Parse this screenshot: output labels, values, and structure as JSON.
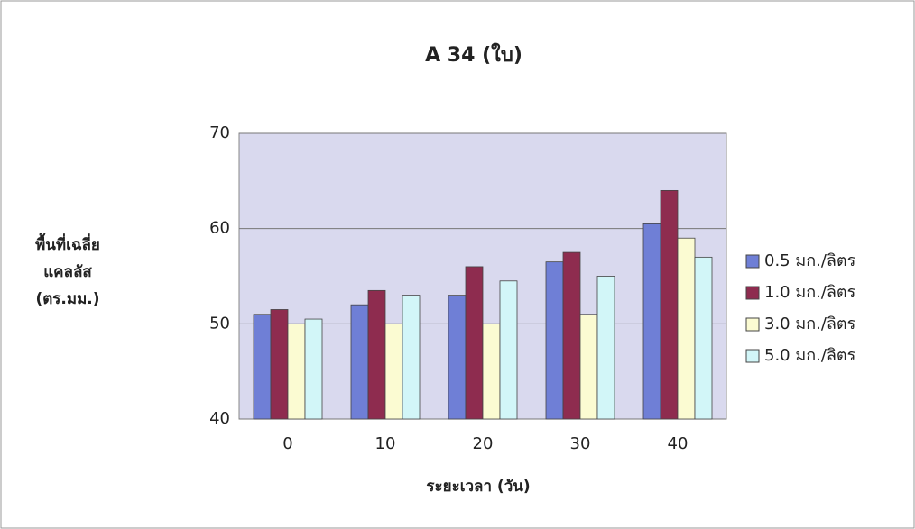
{
  "chart_data": {
    "type": "bar",
    "title": "A 34 (ใบ)",
    "x_label": "ระยะเวลา (วัน)",
    "y_label": [
      "พื้นที่เฉลี่ย",
      "แคลลัส",
      "(ตร.มม.)"
    ],
    "categories": [
      "0",
      "10",
      "20",
      "30",
      "40"
    ],
    "series": [
      {
        "name": "0.5 มก./ลิตร",
        "color": "#6f7fd6",
        "values": [
          51,
          52,
          53,
          56.5,
          60.5
        ]
      },
      {
        "name": "1.0 มก./ลิตร",
        "color": "#8e2c4f",
        "values": [
          51.5,
          53.5,
          56,
          57.5,
          64
        ]
      },
      {
        "name": "3.0 มก./ลิตร",
        "color": "#fbfbd2",
        "values": [
          50,
          50,
          50,
          51,
          59
        ]
      },
      {
        "name": "5.0 มก./ลิตร",
        "color": "#d2f6f8",
        "values": [
          50.5,
          53,
          54.5,
          55,
          57
        ]
      }
    ],
    "ylim": [
      40,
      70
    ],
    "yticks": [
      40,
      50,
      60,
      70
    ],
    "grid": true,
    "legend": "right"
  }
}
